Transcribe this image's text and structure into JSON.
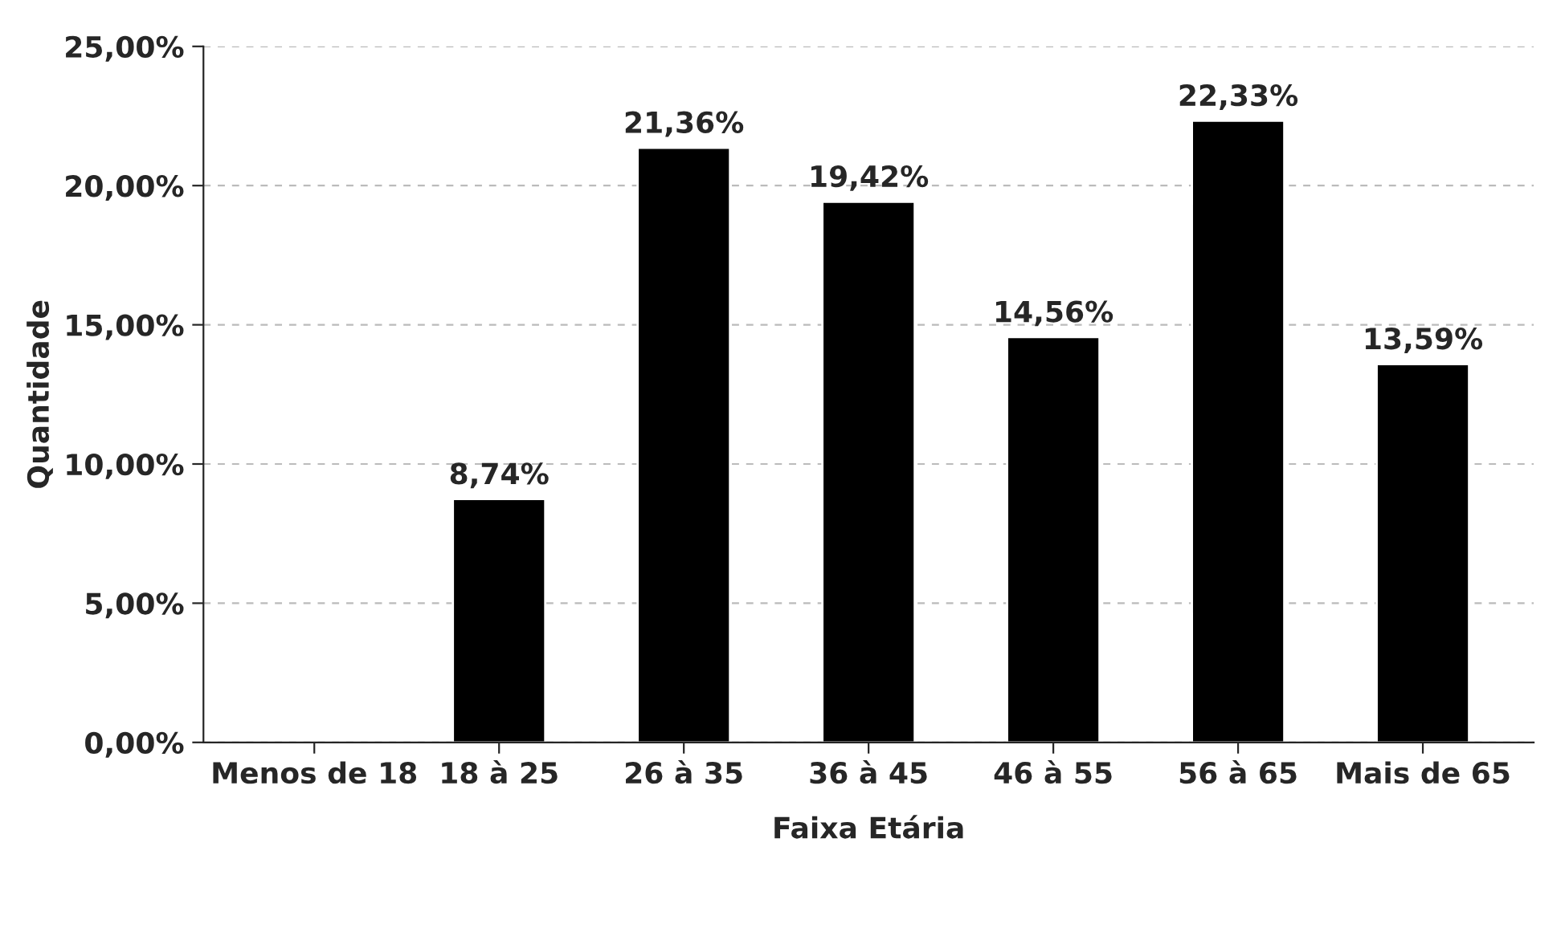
{
  "chart_data": {
    "type": "bar",
    "xlabel": "Faixa Etária",
    "ylabel": "Quantidade",
    "categories": [
      "Menos de 18",
      "18 à 25",
      "26 à 35",
      "36 à 45",
      "46 à 55",
      "56 à 65",
      "Mais de 65"
    ],
    "values": [
      null,
      8.74,
      21.36,
      19.42,
      14.56,
      22.33,
      13.59
    ],
    "value_labels": [
      null,
      "8,74%",
      "21,36%",
      "19,42%",
      "14,56%",
      "22,33%",
      "13,59%"
    ],
    "color": "#000000",
    "ylim": [
      0,
      25
    ],
    "yticks": [
      {
        "value": 0,
        "label": "0,00%"
      },
      {
        "value": 5,
        "label": "5,00%"
      },
      {
        "value": 10,
        "label": "10,00%"
      },
      {
        "value": 15,
        "label": "15,00%"
      },
      {
        "value": 20,
        "label": "20,00%"
      },
      {
        "value": 25,
        "label": "25,00%"
      }
    ],
    "grid": "y"
  }
}
